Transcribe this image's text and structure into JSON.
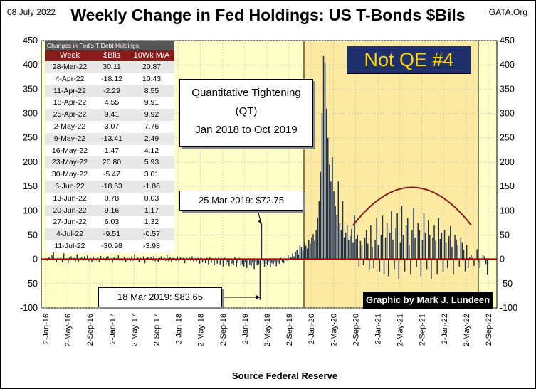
{
  "header": {
    "date": "08 July 2022",
    "title": "Weekly Change in Fed Holdings:  US T-Bonds $Bils",
    "site": "GATA.Org"
  },
  "source": "Source  Federal Reserve",
  "colors": {
    "qt_band": "#fdf5bf",
    "qe_band": "#fbeaa0",
    "bars": "#1f3055",
    "zero_line": "#b00000",
    "arc": "#8b1a1a",
    "plot_bg": "#ffffc8"
  },
  "table": {
    "caption": "Changes in Fed's T-Debt Holdings",
    "headers": [
      "Week",
      "$Bils",
      "10Wk M/A"
    ],
    "rows": [
      [
        "28-Mar-22",
        "30.11",
        "20.87"
      ],
      [
        "4-Apr-22",
        "-18.12",
        "10.43"
      ],
      [
        "11-Apr-22",
        "-2.29",
        "8.55"
      ],
      [
        "18-Apr-22",
        "4.55",
        "9.91"
      ],
      [
        "25-Apr-22",
        "9.41",
        "9.92"
      ],
      [
        "2-May-22",
        "3.07",
        "7.76"
      ],
      [
        "9-May-22",
        "-13.41",
        "2.49"
      ],
      [
        "16-May-22",
        "1.47",
        "4.12"
      ],
      [
        "23-May-22",
        "20.80",
        "5.93"
      ],
      [
        "30-May-22",
        "-5.47",
        "3.01"
      ],
      [
        "6-Jun-22",
        "-18.63",
        "-1.86"
      ],
      [
        "13-Jun-22",
        "0.78",
        "0.03"
      ],
      [
        "20-Jun-22",
        "9.16",
        "1.17"
      ],
      [
        "27-Jun-22",
        "6.03",
        "1.32"
      ],
      [
        "4-Jul-22",
        "-9.51",
        "-0.57"
      ],
      [
        "11-Jul-22",
        "-30.98",
        "-3.98"
      ]
    ]
  },
  "annotations": {
    "qt_line1": "Quantitative Tightening",
    "qt_line2": "(QT)",
    "qt_line3": "Jan 2018 to Oct 2019",
    "peak": "25 Mar 2019:  $72.75",
    "trough": "18 Mar 2019:  $83.65",
    "qe4": "Not QE #4",
    "credit": "Graphic by Mark J. Lundeen"
  },
  "chart_data": {
    "type": "bar",
    "title": "Weekly Change in Fed Holdings:  US T-Bonds $Bils",
    "ylim": [
      -100,
      450
    ],
    "yticks": [
      -100,
      -50,
      0,
      50,
      100,
      150,
      200,
      250,
      300,
      350,
      400,
      450
    ],
    "xticks": [
      "2-Jan-16",
      "2-May-16",
      "2-Sep-16",
      "2-Jan-17",
      "2-May-17",
      "2-Sep-17",
      "2-Jan-18",
      "2-May-18",
      "2-Sep-18",
      "2-Jan-19",
      "2-May-19",
      "2-Sep-19",
      "2-Jan-20",
      "2-May-20",
      "2-Sep-20",
      "2-Jan-21",
      "2-May-21",
      "2-Sep-21",
      "2-Jan-22",
      "2-May-22",
      "2-Sep-22"
    ],
    "grid": true,
    "series": [
      {
        "values": [
          2,
          -3,
          4,
          -2,
          8,
          15,
          1,
          -5,
          3,
          -2,
          5,
          -6,
          12,
          -3,
          2,
          -8,
          4,
          6,
          -2,
          3,
          -4,
          10,
          -5,
          2,
          4,
          -3,
          6,
          -2,
          8,
          -4,
          3,
          -6,
          5,
          2,
          -3,
          4,
          -5,
          7,
          -2,
          3,
          -4,
          5,
          6,
          -3,
          2,
          -7,
          4,
          -2,
          3,
          8,
          -4,
          2,
          -3,
          5,
          -6,
          3,
          2,
          -4,
          6,
          -3,
          10,
          -2,
          4,
          -5,
          3,
          -3,
          6,
          -8,
          2,
          4,
          -2,
          5,
          -3,
          7,
          -4,
          2,
          -5,
          3,
          6,
          -2,
          4,
          -3,
          8,
          -4,
          5,
          -6,
          3,
          2,
          -3,
          6,
          -5,
          4,
          -2,
          3,
          -8,
          5,
          -2,
          4,
          -3,
          6,
          -5,
          2,
          -4,
          3,
          -9,
          4,
          -6,
          2,
          -8,
          3,
          -10,
          5,
          -7,
          2,
          -12,
          3,
          -9,
          4,
          -11,
          2,
          -15,
          3,
          -10,
          -6,
          -14,
          2,
          -9,
          -12,
          4,
          -16,
          -8,
          3,
          -13,
          -10,
          -15,
          -6,
          -18,
          2,
          -11,
          -14,
          -7,
          -20,
          -4,
          -12,
          -10,
          -83.65,
          72.75,
          -6,
          -15,
          -9,
          -12,
          -4,
          -16,
          -8,
          -10,
          -5,
          -14,
          -7,
          -9,
          3,
          -6,
          -8,
          2,
          -3,
          8,
          -2,
          4,
          12,
          6,
          15,
          20,
          10,
          30,
          25,
          18,
          35,
          28,
          22,
          40,
          32,
          45,
          52,
          38,
          60,
          85,
          120,
          180,
          300,
          418,
          405,
          310,
          250,
          195,
          160,
          210,
          140,
          110,
          90,
          160,
          75,
          60,
          120,
          45,
          55,
          70,
          40,
          48,
          62,
          35,
          90,
          42,
          50,
          -15,
          38,
          28,
          -12,
          45,
          60,
          32,
          -20,
          70,
          25,
          -18,
          40,
          85,
          30,
          -25,
          50,
          90,
          -30,
          45,
          75,
          -35,
          55,
          100,
          40,
          -20,
          65,
          95,
          -40,
          35,
          110,
          50,
          -25,
          70,
          85,
          30,
          -30,
          60,
          105,
          45,
          -15,
          75,
          60,
          -35,
          40,
          95,
          55,
          -20,
          80,
          50,
          -40,
          45,
          70,
          38,
          -30,
          85,
          42,
          55,
          -25,
          60,
          35,
          -18,
          48,
          68,
          25,
          -30,
          50,
          40,
          30,
          -15,
          45,
          35,
          20,
          -25,
          30,
          -18,
          4.55,
          9.41,
          3.07,
          -13.41,
          1.47,
          20.8,
          -5.47,
          -18.63,
          0.78,
          9.16,
          6.03,
          -9.51,
          -30.98
        ]
      }
    ]
  }
}
